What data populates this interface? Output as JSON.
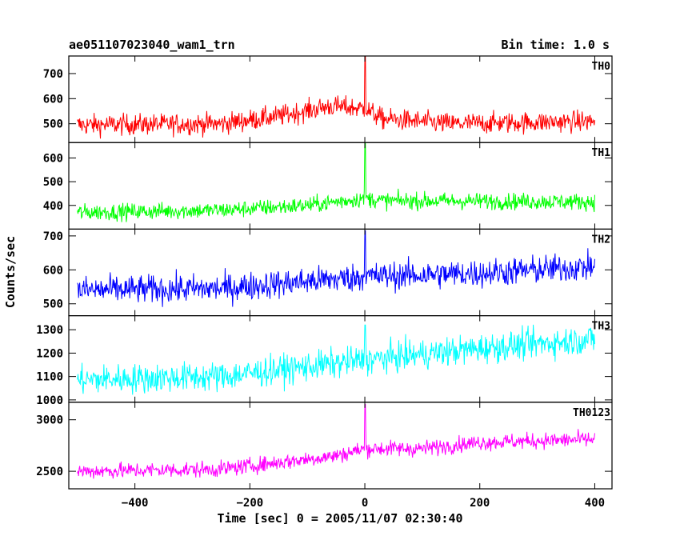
{
  "chart_data": {
    "type": "line",
    "title_left": "ae051107023040_wam1_trn",
    "title_right": "Bin time: 1.0 s",
    "xlabel": "Time [sec] 0 = 2005/11/07 02:30:40",
    "ylabel": "Counts/sec",
    "xlim": [
      -515,
      430
    ],
    "x_ticks": [
      -400,
      -200,
      0,
      200,
      400
    ],
    "x_range": [
      -500,
      400
    ],
    "burst_time": 0,
    "panels": [
      {
        "name": "TH0",
        "color": "#ff0000",
        "ylim": [
          425,
          770
        ],
        "y_ticks": [
          500,
          600,
          700
        ],
        "baseline": [
          [
            -500,
            495
          ],
          [
            -250,
            500
          ],
          [
            -150,
            530
          ],
          [
            -60,
            570
          ],
          [
            0,
            560
          ],
          [
            30,
            520
          ],
          [
            150,
            500
          ],
          [
            400,
            510
          ]
        ],
        "noise": 30,
        "spike": 770
      },
      {
        "name": "TH1",
        "color": "#00ff00",
        "ylim": [
          300,
          665
        ],
        "y_ticks": [
          400,
          500,
          600
        ],
        "baseline": [
          [
            -500,
            370
          ],
          [
            -250,
            380
          ],
          [
            -100,
            400
          ],
          [
            0,
            430
          ],
          [
            30,
            420
          ],
          [
            400,
            415
          ]
        ],
        "noise": 25,
        "spike": 665
      },
      {
        "name": "TH2",
        "color": "#0000ff",
        "ylim": [
          465,
          720
        ],
        "y_ticks": [
          500,
          600,
          700
        ],
        "baseline": [
          [
            -500,
            540
          ],
          [
            -250,
            545
          ],
          [
            0,
            580
          ],
          [
            200,
            590
          ],
          [
            400,
            610
          ]
        ],
        "noise": 30,
        "spike": 715
      },
      {
        "name": "TH3",
        "color": "#00ffff",
        "ylim": [
          990,
          1360
        ],
        "y_ticks": [
          1000,
          1100,
          1200,
          1300
        ],
        "baseline": [
          [
            -500,
            1085
          ],
          [
            -250,
            1100
          ],
          [
            0,
            1170
          ],
          [
            200,
            1220
          ],
          [
            400,
            1260
          ]
        ],
        "noise": 45,
        "spike": 1320
      },
      {
        "name": "TH0123",
        "color": "#ff00ff",
        "ylim": [
          2330,
          3170
        ],
        "y_ticks": [
          2500,
          3000
        ],
        "baseline": [
          [
            -500,
            2500
          ],
          [
            -250,
            2520
          ],
          [
            -50,
            2650
          ],
          [
            0,
            2720
          ],
          [
            100,
            2720
          ],
          [
            200,
            2780
          ],
          [
            400,
            2810
          ]
        ],
        "noise": 55,
        "spike": 3150
      }
    ]
  }
}
